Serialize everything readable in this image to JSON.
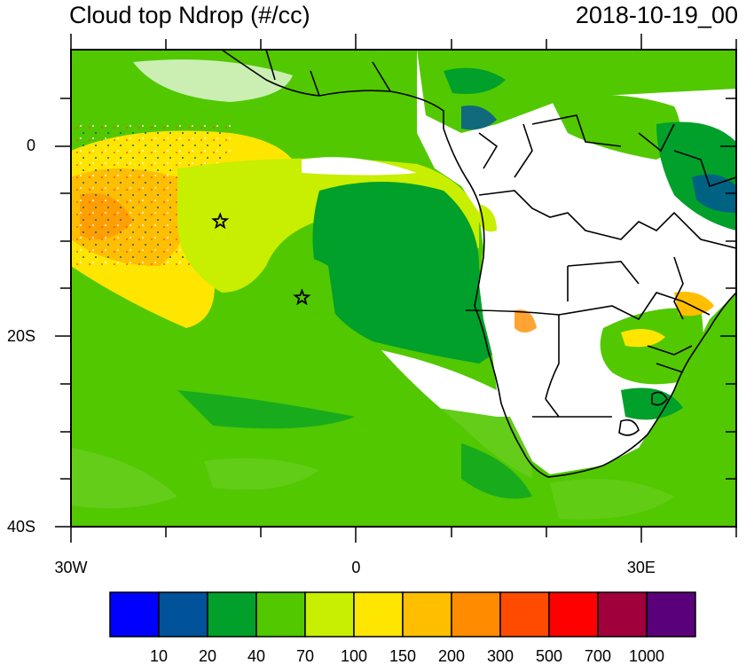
{
  "title": "Cloud top Ndrop (#/cc)",
  "datetime": "2018-10-19_00",
  "axes": {
    "y_labels": [
      {
        "text": "0",
        "lat": 0
      },
      {
        "text": "20S",
        "lat": -20
      },
      {
        "text": "40S",
        "lat": -40
      }
    ],
    "x_labels": [
      {
        "text": "30W",
        "lon": -30
      },
      {
        "text": "0",
        "lon": 0
      },
      {
        "text": "30E",
        "lon": 30
      }
    ],
    "lon_range": [
      -30,
      40
    ],
    "lat_range": [
      -40,
      10
    ]
  },
  "markers": [
    {
      "lon": -14.3,
      "lat": -8.0
    },
    {
      "lon": -5.7,
      "lat": -16.0
    }
  ],
  "colorbar": {
    "colors": [
      "#0000ff",
      "#00529a",
      "#00a02a",
      "#52c800",
      "#c8ee00",
      "#ffe600",
      "#ffbe00",
      "#ff8c00",
      "#ff4b00",
      "#ff0000",
      "#a0003c",
      "#5a007a"
    ],
    "labels": [
      "10",
      "20",
      "40",
      "70",
      "100",
      "150",
      "200",
      "300",
      "500",
      "700",
      "1000"
    ]
  }
}
